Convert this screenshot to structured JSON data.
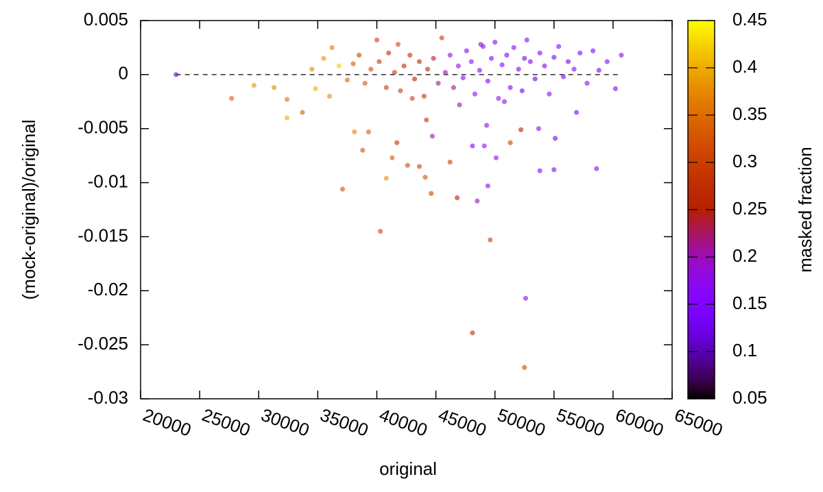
{
  "chart_data": {
    "type": "scatter",
    "xlabel": "original",
    "ylabel": "(mock-original)/original",
    "colorbar_label": "masked fraction",
    "xlim": [
      20000,
      65000
    ],
    "xticks": [
      20000,
      25000,
      30000,
      35000,
      40000,
      45000,
      50000,
      55000,
      60000,
      65000
    ],
    "ylim": [
      -0.03,
      0.005
    ],
    "yticks": [
      0.005,
      0,
      -0.005,
      -0.01,
      -0.015,
      -0.02,
      -0.025,
      -0.03
    ],
    "clim": [
      0.05,
      0.45
    ],
    "cticks": [
      0.05,
      0.1,
      0.15,
      0.2,
      0.25,
      0.3,
      0.35,
      0.4,
      0.45
    ],
    "colormap": "gnuplot",
    "reference_line": 0,
    "x": [
      23000,
      27700,
      29600,
      31300,
      32400,
      32400,
      33700,
      37100,
      38100,
      39300,
      38800,
      40300,
      40800,
      41700,
      41300,
      42600,
      43600,
      44100,
      44600,
      44200,
      44700,
      46200,
      46800,
      48100,
      48500,
      49400,
      49600,
      49300,
      48100,
      49100,
      50100,
      52600,
      52500,
      53800,
      55000,
      55100,
      58600,
      51300,
      52200,
      53700,
      56900,
      34500,
      35500,
      36200,
      36800,
      37500,
      38000,
      38500,
      39000,
      39500,
      40000,
      40200,
      40800,
      41000,
      41500,
      42000,
      42300,
      42800,
      43200,
      43600,
      44000,
      44300,
      44800,
      45200,
      45500,
      45800,
      46200,
      46500,
      46900,
      47300,
      47600,
      48000,
      48300,
      48700,
      49000,
      49400,
      49700,
      50000,
      50300,
      50600,
      51000,
      51300,
      51600,
      52000,
      52300,
      52700,
      53000,
      53400,
      53800,
      54200,
      54600,
      55000,
      55400,
      55800,
      56200,
      56700,
      57200,
      57800,
      58300,
      58800,
      59500,
      60200,
      60700,
      36000,
      34800,
      41800,
      43000,
      47000,
      48800,
      50800,
      52500
    ],
    "y": [
      0,
      -0.0022,
      -0.001,
      -0.0012,
      -0.0023,
      -0.004,
      -0.0035,
      -0.0106,
      -0.0053,
      -0.0053,
      -0.007,
      -0.0145,
      -0.0096,
      -0.0063,
      -0.0077,
      -0.0084,
      -0.0085,
      -0.0095,
      -0.011,
      -0.0042,
      -0.0057,
      -0.0081,
      -0.0114,
      -0.0239,
      -0.0117,
      -0.0103,
      -0.0153,
      -0.0047,
      -0.0066,
      -0.0066,
      -0.0077,
      -0.0207,
      -0.0271,
      -0.0089,
      -0.0088,
      -0.0059,
      -0.0087,
      -0.0063,
      -0.0051,
      -0.005,
      -0.0035,
      0.0005,
      0.0015,
      0.0025,
      0.0008,
      -0.0005,
      0.001,
      0.0018,
      -0.0008,
      0.0005,
      0.0032,
      0.0012,
      -0.0012,
      0.002,
      0.0002,
      -0.0015,
      0.0008,
      0.0018,
      -0.0004,
      0.0012,
      -0.002,
      0.0005,
      0.0015,
      -0.0008,
      0.0034,
      0.0002,
      0.0018,
      -0.0012,
      0.0008,
      -0.0003,
      0.0022,
      0.0012,
      -0.0018,
      0.0004,
      0.0026,
      -0.0006,
      0.0015,
      0.003,
      -0.0022,
      0.0009,
      0.0018,
      -0.0012,
      0.0025,
      0.0005,
      -0.0015,
      0.0032,
      0.0012,
      -0.0004,
      0.002,
      0.0008,
      -0.0018,
      0.0016,
      0.0026,
      -0.0002,
      0.0012,
      0.0005,
      0.002,
      -0.0008,
      0.0022,
      0.0004,
      0.0012,
      -0.0013,
      0.0018,
      -0.002,
      -0.0013,
      0.0028,
      -0.0022,
      -0.0028,
      0.0028,
      -0.0025,
      0.0015
    ],
    "c": [
      0.12,
      0.33,
      0.38,
      0.37,
      0.35,
      0.4,
      0.33,
      0.32,
      0.37,
      0.33,
      0.32,
      0.3,
      0.38,
      0.28,
      0.33,
      0.31,
      0.3,
      0.32,
      0.3,
      0.28,
      0.2,
      0.3,
      0.25,
      0.27,
      0.2,
      0.18,
      0.3,
      0.18,
      0.15,
      0.17,
      0.17,
      0.18,
      0.3,
      0.15,
      0.15,
      0.12,
      0.15,
      0.3,
      0.25,
      0.18,
      0.15,
      0.37,
      0.38,
      0.36,
      0.42,
      0.34,
      0.33,
      0.3,
      0.33,
      0.31,
      0.3,
      0.28,
      0.29,
      0.27,
      0.28,
      0.3,
      0.26,
      0.27,
      0.25,
      0.27,
      0.28,
      0.26,
      0.24,
      0.22,
      0.3,
      0.2,
      0.19,
      0.21,
      0.18,
      0.17,
      0.16,
      0.18,
      0.17,
      0.15,
      0.16,
      0.14,
      0.15,
      0.16,
      0.17,
      0.14,
      0.13,
      0.15,
      0.16,
      0.14,
      0.13,
      0.15,
      0.14,
      0.12,
      0.15,
      0.14,
      0.16,
      0.13,
      0.15,
      0.14,
      0.12,
      0.15,
      0.14,
      0.16,
      0.15,
      0.13,
      0.15,
      0.14,
      0.16,
      0.37,
      0.4,
      0.31,
      0.3,
      0.2,
      0.19,
      0.18,
      0.12
    ]
  }
}
